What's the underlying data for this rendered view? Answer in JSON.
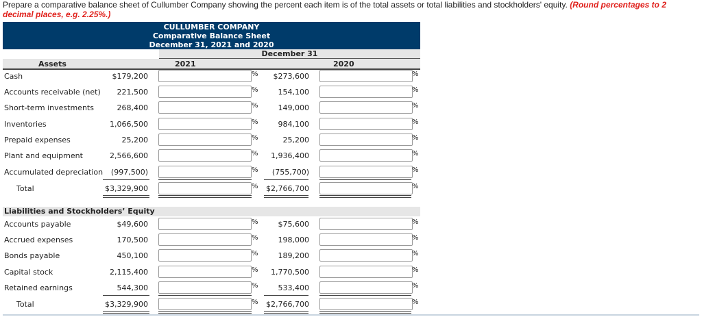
{
  "instructions": {
    "text": "Prepare a comparative balance sheet of Cullumber Company showing the percent each item is of the total assets or total liabilities and stockholders' equity.",
    "emphasis_line1": "(Round percentages to 2",
    "emphasis_line2": "decimal places, e.g. 2.25%.)"
  },
  "header": {
    "company": "CULLUMBER COMPANY",
    "title": "Comparative Balance Sheet",
    "date": "December 31, 2021 and 2020",
    "period": "December 31",
    "col1": "2021",
    "col2": "2020",
    "assets_label": "Assets"
  },
  "percent_sign": "%",
  "assets": [
    {
      "label": "Cash",
      "y2021": "$179,200",
      "y2020": "$273,600",
      "p2021": "",
      "p2020": ""
    },
    {
      "label": "Accounts receivable (net)",
      "y2021": "221,500",
      "y2020": "154,100",
      "p2021": "",
      "p2020": ""
    },
    {
      "label": "Short-term investments",
      "y2021": "268,400",
      "y2020": "149,000",
      "p2021": "",
      "p2020": ""
    },
    {
      "label": "Inventories",
      "y2021": "1,066,500",
      "y2020": "984,100",
      "p2021": "",
      "p2020": ""
    },
    {
      "label": "Prepaid expenses",
      "y2021": "25,200",
      "y2020": "25,200",
      "p2021": "",
      "p2020": ""
    },
    {
      "label": "Plant and equipment",
      "y2021": "2,566,600",
      "y2020": "1,936,400",
      "p2021": "",
      "p2020": ""
    },
    {
      "label": "Accumulated depreciation",
      "y2021": "(997,500)",
      "y2020": "(755,700)",
      "p2021": "",
      "p2020": ""
    },
    {
      "label": "Total",
      "y2021": "$3,329,900",
      "y2020": "$2,766,700",
      "p2021": "",
      "p2020": ""
    }
  ],
  "liabilities_label": "Liabilities and Stockholders’ Equity",
  "liabilities": [
    {
      "label": "Accounts payable",
      "y2021": "$49,600",
      "y2020": "$75,600",
      "p2021": "",
      "p2020": ""
    },
    {
      "label": "Accrued expenses",
      "y2021": "170,500",
      "y2020": "198,000",
      "p2021": "",
      "p2020": ""
    },
    {
      "label": "Bonds payable",
      "y2021": "450,100",
      "y2020": "189,200",
      "p2021": "",
      "p2020": ""
    },
    {
      "label": "Capital stock",
      "y2021": "2,115,400",
      "y2020": "1,770,500",
      "p2021": "",
      "p2020": ""
    },
    {
      "label": "Retained earnings",
      "y2021": "544,300",
      "y2020": "533,400",
      "p2021": "",
      "p2020": ""
    },
    {
      "label": "Total",
      "y2021": "$3,329,900",
      "y2020": "$2,766,700",
      "p2021": "",
      "p2020": ""
    }
  ]
}
